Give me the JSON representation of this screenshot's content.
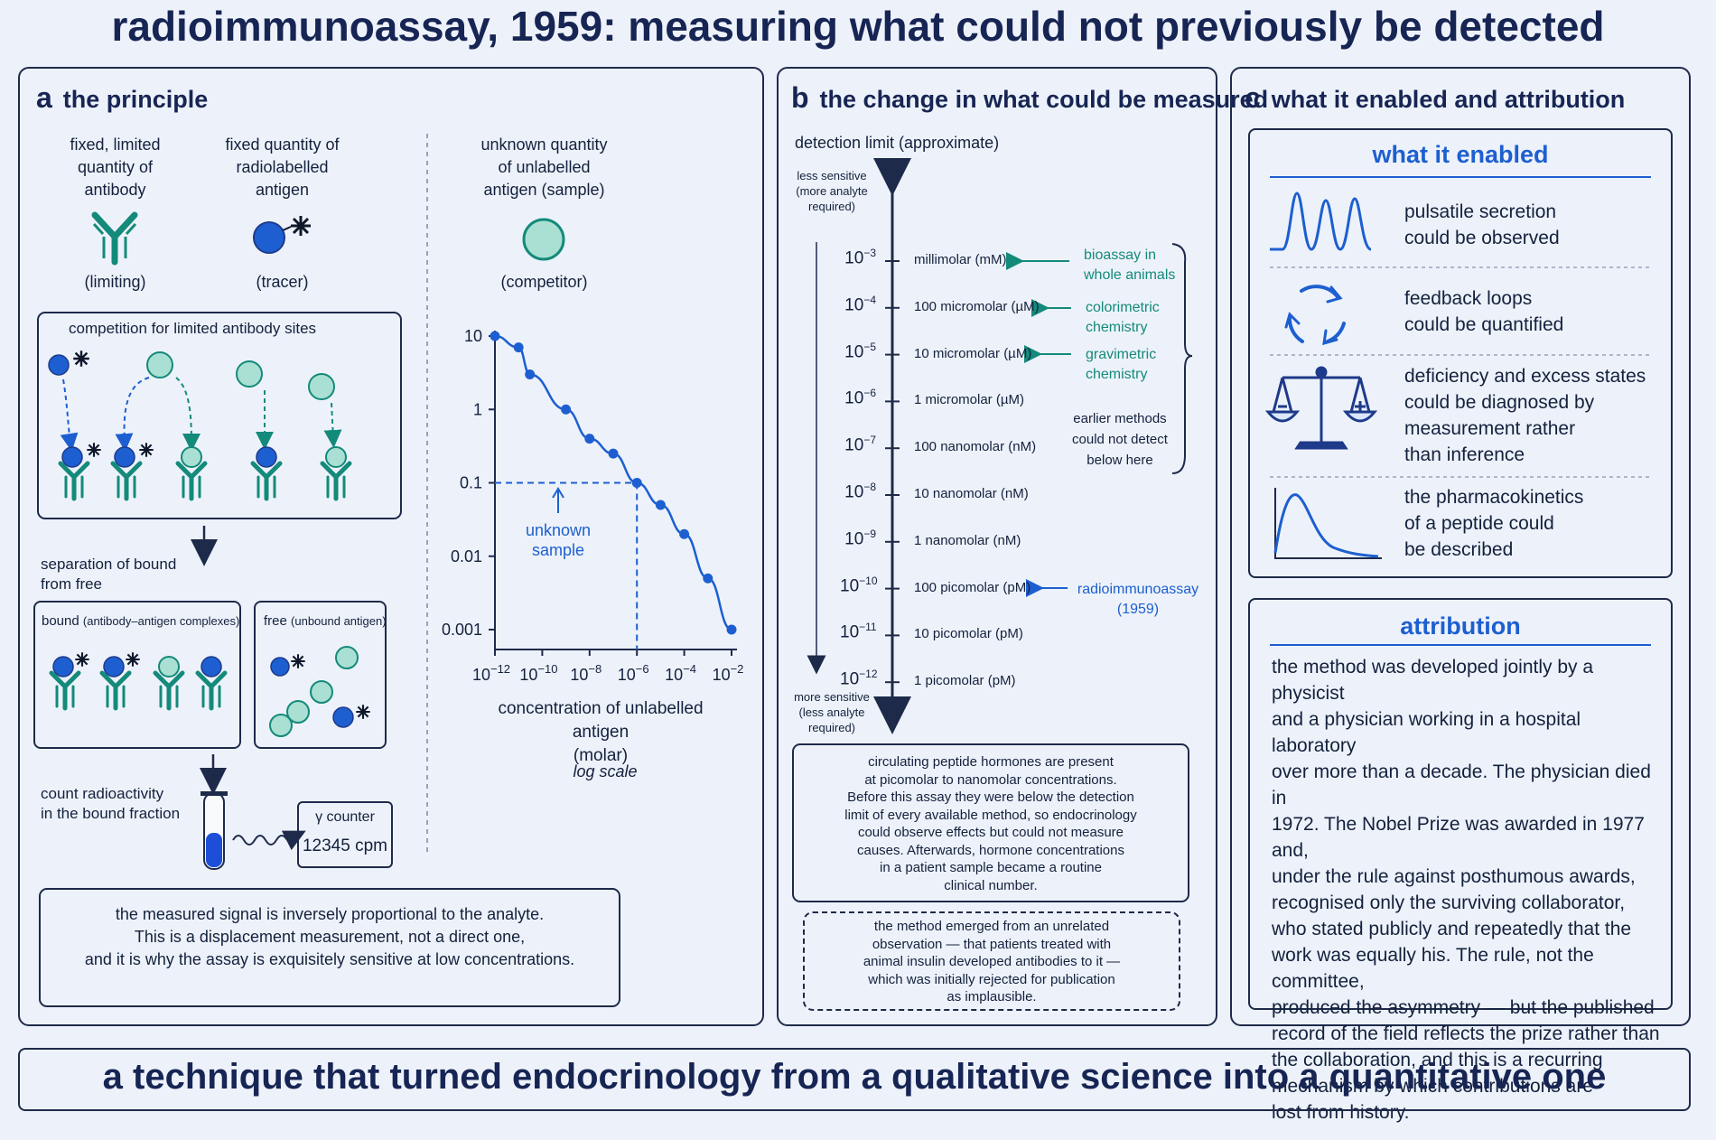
{
  "title": "radioimmunoassay, 1959: measuring what could not previously be detected",
  "footer": "a technique that turned endocrinology from a qualitative science into a quantitative one",
  "panel_a": {
    "letter": "a",
    "title": "the principle",
    "reagents": [
      {
        "label": "fixed, limited\nquantity of\nantibody",
        "role": "(limiting)"
      },
      {
        "label": "fixed quantity of\nradiolabelled\nantigen",
        "role": "(tracer)"
      },
      {
        "label": "unknown quantity\nof unlabelled\nantigen (sample)",
        "role": "(competitor)"
      }
    ],
    "competition_title": "competition for limited antibody sites",
    "separation_label": "separation of bound\nfrom free",
    "bound_label": "bound",
    "bound_sub": "(antibody–antigen complexes)",
    "free_label": "free",
    "free_sub": "(unbound antigen)",
    "count_label": "count radioactivity\nin the bound fraction",
    "counter_title": "γ counter",
    "counter_value": "12345 cpm",
    "note": "the  measured signal is inversely proportional to the analyte.\nThis is a displacement measurement, not a direct one,\nand it is why the assay is exquisitely sensitive at low concentrations."
  },
  "chart_data": {
    "type": "line",
    "x": [
      1e-12,
      1e-11,
      3e-11,
      1e-09,
      1e-08,
      1e-07,
      1e-06,
      1e-05,
      0.0001,
      0.001,
      0.01
    ],
    "y": [
      10,
      7,
      3,
      1,
      0.4,
      0.25,
      0.1,
      0.05,
      0.02,
      0.005,
      0.001
    ],
    "y_ticks": [
      "10",
      "1",
      "0.1",
      "0.01",
      "0.001"
    ],
    "x_ticks": [
      "10^-12",
      "10^-10",
      "10^-8",
      "10^-6",
      "10^-4",
      "10^-2"
    ],
    "xlabel": "concentration of unlabelled antigen\n(molar)",
    "scale_note": "log scale",
    "annotation": "unknown\nsample",
    "unknown_point": {
      "x": 1e-06,
      "y": 0.1
    }
  },
  "panel_b": {
    "letter": "b",
    "title": "the change in what could be measured",
    "axis_title": "detection limit (approximate)",
    "top_note": "less sensitive\n(more analyte\nrequired)",
    "bottom_note": "more sensitive\n(less analyte\nrequired)",
    "levels": [
      {
        "exp": "-3",
        "name": "millimolar (mM)"
      },
      {
        "exp": "-4",
        "name": "100 micromolar (µM)"
      },
      {
        "exp": "-5",
        "name": "10 micromolar (µM)"
      },
      {
        "exp": "-6",
        "name": "1 micromolar (µM)"
      },
      {
        "exp": "-7",
        "name": "100 nanomolar (nM)"
      },
      {
        "exp": "-8",
        "name": "10 nanomolar (nM)"
      },
      {
        "exp": "-9",
        "name": "1 nanomolar (nM)"
      },
      {
        "exp": "-10",
        "name": "100 picomolar (pM)"
      },
      {
        "exp": "-11",
        "name": "10 picomolar (pM)"
      },
      {
        "exp": "-12",
        "name": "1 picomolar (pM)"
      }
    ],
    "methods": [
      "bioassay in\nwhole animals",
      "colorimetric\nchemistry",
      "gravimetric\nchemistry",
      "radioimmunoassay\n(1959)"
    ],
    "earlier_note": "earlier methods\ncould not detect\nbelow here",
    "note1": "circulating  peptide hormones are present\nat picomolar to nanomolar concentrations.\nBefore this assay they were below the detection\nlimit of every available method, so endocrinology\ncould observe effects but could not measure\ncauses. Afterwards, hormone concentrations\nin a patient sample became a routine\nclinical number.",
    "note2": "the method emerged from an unrelated\nobservation — that patients treated with\nanimal insulin developed antibodies to it —\nwhich was initially rejected for publication\nas implausible."
  },
  "panel_c": {
    "letter": "c",
    "title": "what it enabled and attribution",
    "enabled_title": "what it enabled",
    "items": [
      {
        "icon": "pulses",
        "text": "pulsatile secretion\ncould be observed"
      },
      {
        "icon": "cycle",
        "text": "feedback loops\ncould be quantified"
      },
      {
        "icon": "scales",
        "text": "deficiency and excess states\ncould be diagnosed by\nmeasurement rather\nthan inference"
      },
      {
        "icon": "curve",
        "text": "the pharmacokinetics\nof a peptide could\nbe described"
      }
    ],
    "attribution_title": "attribution",
    "attribution_lines": [
      "the method was developed jointly by a physicist",
      "and a physician working in a hospital laboratory",
      "over more than a decade. The physician died in",
      "1972. The Nobel Prize was awarded in 1977 and,",
      "under the rule against posthumous awards,",
      "recognised only the surviving collaborator,",
      "who stated publicly and repeatedly that the",
      "work was equally his. The rule, not the committee,",
      "produced the asymmetry — but the published",
      "record of the field reflects the prize rather than",
      "the collaboration, and this is a recurring",
      "mechanism by which contributions are",
      "lost from history."
    ]
  },
  "colors": {
    "navy": "#1e2a4a",
    "blue": "#1d5fd0",
    "teal": "#148a7a",
    "tealLight": "#a9e0d3",
    "bg": "#edf2fa"
  }
}
